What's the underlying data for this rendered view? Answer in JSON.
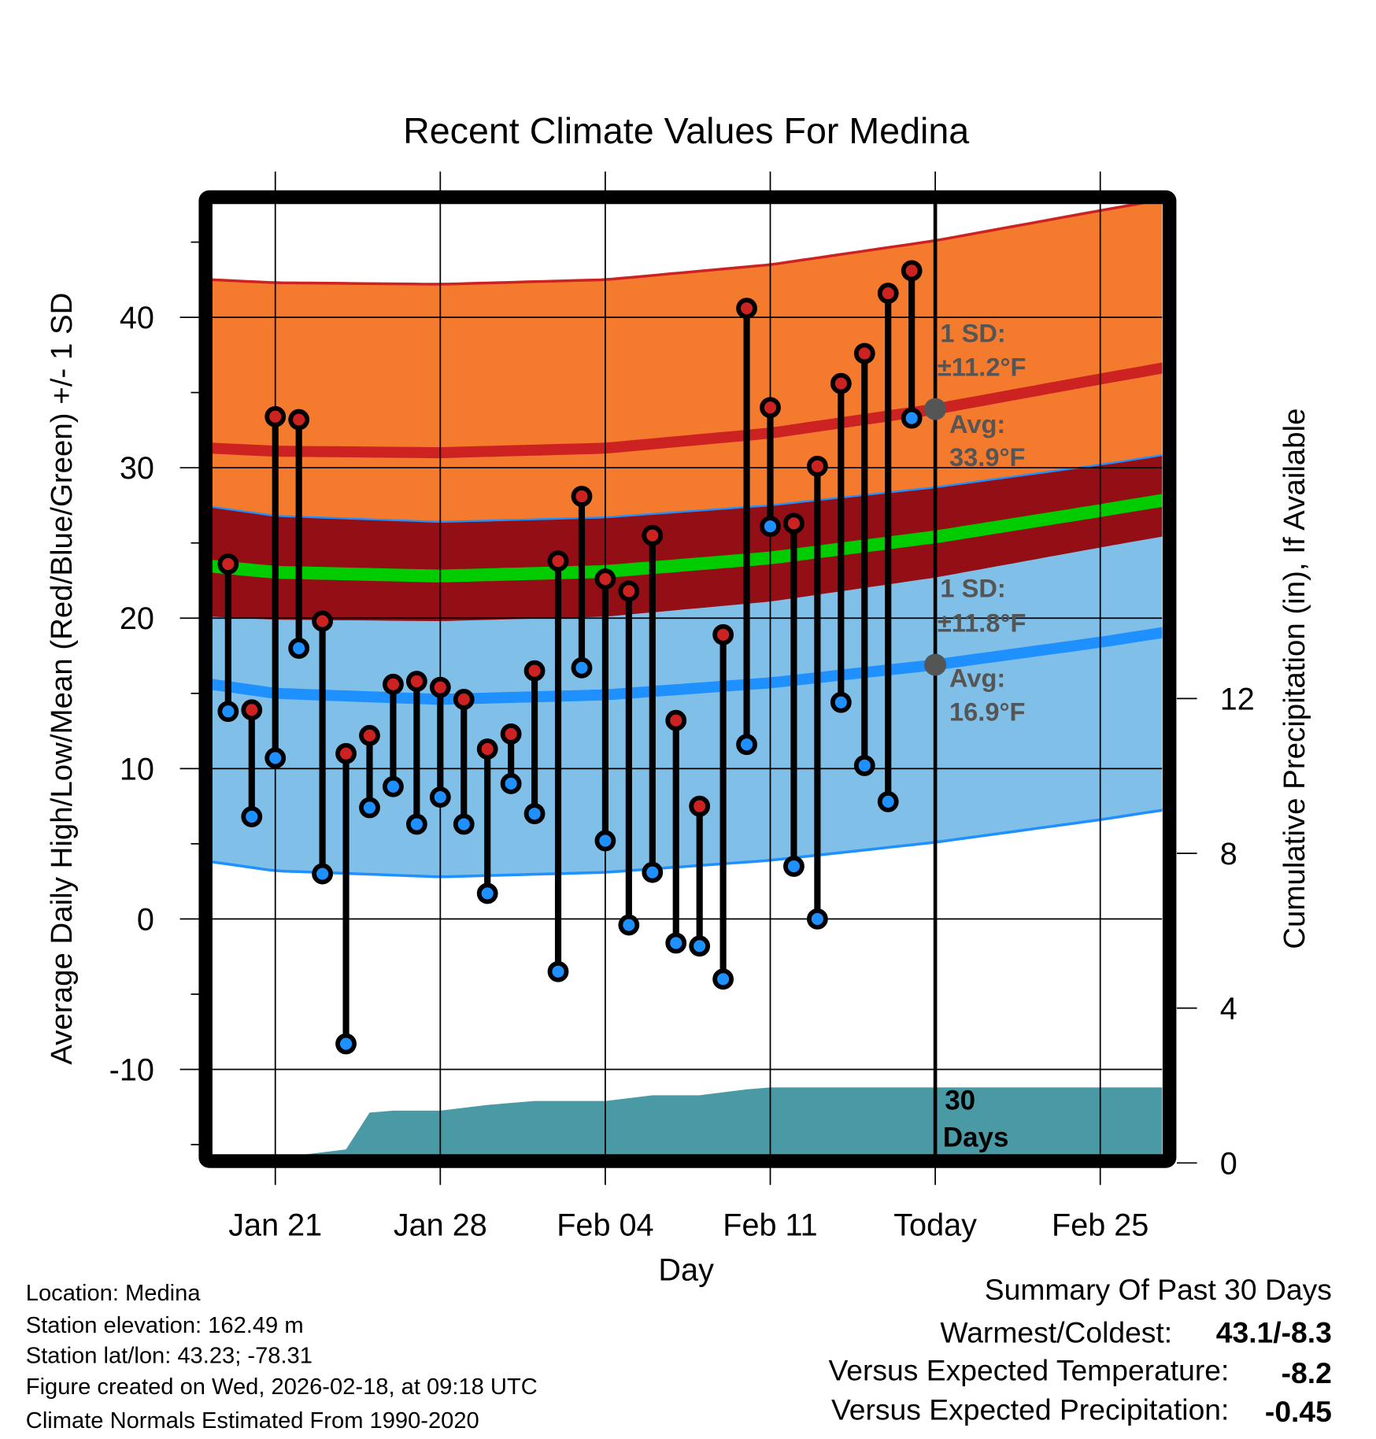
{
  "chart_data": {
    "type": "line",
    "title": "Recent Climate Values For Medina",
    "xlabel": "Day",
    "ylabel": "Average Daily High/Low/Mean (Red/Blue/Green) +/- 1 SD",
    "y2label": "Cumulative Precipitation (in), If Available",
    "ylim": [
      -15.7,
      47.6
    ],
    "y2lim": [
      0,
      15.0
    ],
    "xlim_day_of_year": [
      18.3,
      58.9
    ],
    "x_ticks": [
      {
        "day": 21,
        "label": "Jan 21"
      },
      {
        "day": 28,
        "label": "Jan 28"
      },
      {
        "day": 35,
        "label": "Feb 04"
      },
      {
        "day": 42,
        "label": "Feb 11"
      },
      {
        "day": 49,
        "label": "Today"
      },
      {
        "day": 56,
        "label": "Feb 25"
      }
    ],
    "y_ticks": [
      "40",
      "30",
      "20",
      "10",
      "0",
      "-10"
    ],
    "y_tick_values": [
      40,
      30,
      20,
      10,
      0,
      -10
    ],
    "y2_ticks": [
      "12",
      "8",
      "4",
      "0"
    ],
    "y2_tick_values": [
      12,
      8,
      4,
      0
    ],
    "today_day": 49,
    "observed": {
      "days": [
        19,
        20,
        21,
        22,
        23,
        24,
        25,
        26,
        27,
        28,
        29,
        30,
        31,
        32,
        33,
        34,
        35,
        36,
        37,
        38,
        39,
        40,
        41,
        42,
        43,
        44,
        45,
        46,
        47,
        48
      ],
      "high": [
        23.6,
        13.9,
        33.4,
        33.2,
        19.8,
        11.0,
        12.2,
        15.6,
        15.8,
        15.4,
        14.6,
        11.3,
        12.3,
        16.5,
        23.8,
        28.1,
        22.6,
        21.8,
        25.5,
        13.2,
        7.5,
        18.9,
        40.6,
        34.0,
        26.3,
        30.1,
        35.6,
        37.6,
        41.6,
        43.1
      ],
      "low": [
        13.8,
        6.8,
        10.7,
        18.0,
        3.0,
        -8.3,
        7.4,
        8.8,
        6.3,
        8.1,
        6.3,
        1.7,
        9.0,
        7.0,
        -3.5,
        16.7,
        5.2,
        -0.4,
        3.1,
        -1.6,
        -1.8,
        -4.0,
        11.6,
        26.1,
        3.5,
        0.0,
        14.4,
        10.2,
        7.8,
        33.3
      ]
    },
    "normals": {
      "days": [
        18.3,
        21,
        28,
        35,
        42,
        49,
        56,
        58.9
      ],
      "high_mean": [
        31.3,
        31.1,
        31.0,
        31.3,
        32.3,
        33.9,
        35.9,
        36.7
      ],
      "high_sd": 11.2,
      "low_mean": [
        15.6,
        15.0,
        14.6,
        14.9,
        15.7,
        16.9,
        18.4,
        19.1
      ],
      "low_sd": 11.8
    },
    "precip": {
      "days": [
        18.3,
        21,
        22,
        24,
        25,
        26,
        28,
        30,
        32,
        35,
        37,
        39,
        41,
        42,
        49,
        58.9
      ],
      "cumulative": [
        0,
        0,
        0.2,
        0.35,
        1.3,
        1.35,
        1.35,
        1.5,
        1.6,
        1.6,
        1.75,
        1.75,
        1.9,
        1.95,
        1.95,
        1.95
      ]
    },
    "annotations": {
      "high_sd_label": "1 SD:",
      "high_sd_value": "±11.2°F",
      "high_avg_label": "Avg:",
      "high_avg_value": "33.9°F",
      "low_sd_label": "1 SD:",
      "low_sd_value": "±11.8°F",
      "low_avg_label": "Avg:",
      "low_avg_value": "16.9°F",
      "days_count": "30",
      "days_word": "Days"
    },
    "colors": {
      "high_band": "#f47b2e",
      "overlap_band": "#940e16",
      "low_band": "#80c0e8",
      "high_line": "#cc2222",
      "low_line": "#1e90ff",
      "mean_line": "#00cc00",
      "precip": "#4a9aa5"
    }
  },
  "footer": {
    "lines": [
      "Location: Medina",
      "Station elevation: 162.49 m",
      "Station lat/lon: 43.23; -78.31",
      "Figure created on Wed, 2026-02-18, at 09:18 UTC",
      "Climate Normals Estimated From 1990-2020"
    ]
  },
  "summary": {
    "title": "Summary Of Past 30 Days",
    "warmest_label": "Warmest/Coldest:",
    "warmest_value": "43.1/-8.3",
    "temp_label": "Versus Expected Temperature:",
    "temp_value": "-8.2",
    "temp_color": "#1e90ff",
    "precip_label": "Versus Expected Precipitation:",
    "precip_value": "-0.45",
    "precip_color": "#a0522d"
  }
}
